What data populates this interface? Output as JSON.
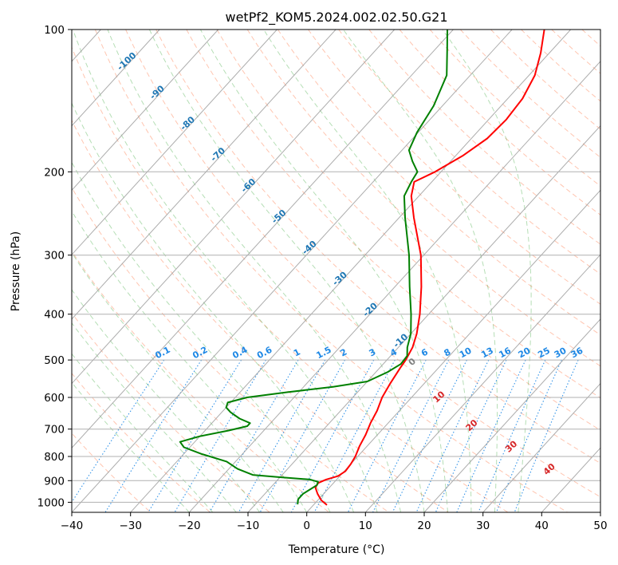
{
  "chart_data": {
    "type": "skew-t",
    "title": "wetPf2_KOM5.2024.002.02.50.G21",
    "xlabel": "Temperature (°C)",
    "ylabel": "Pressure (hPa)",
    "xlim": [
      -40,
      50
    ],
    "ylim": [
      1050,
      100
    ],
    "y_scale": "log",
    "x_ticks": [
      "−40",
      "−30",
      "−20",
      "−10",
      "0",
      "10",
      "20",
      "30",
      "40",
      "50"
    ],
    "x_tick_values": [
      -40,
      -30,
      -20,
      -10,
      0,
      10,
      20,
      30,
      40,
      50
    ],
    "y_ticks": [
      "100",
      "200",
      "300",
      "400",
      "500",
      "600",
      "700",
      "800",
      "900",
      "1000"
    ],
    "y_tick_values": [
      100,
      200,
      300,
      400,
      500,
      600,
      700,
      800,
      900,
      1000
    ],
    "grid": true,
    "series": [
      {
        "type": "temperature",
        "color": "#ff0000",
        "points": [
          [
            1013,
            2.3
          ],
          [
            990,
            0.6
          ],
          [
            960,
            -1.0
          ],
          [
            930,
            -2.4
          ],
          [
            910,
            -2.6
          ],
          [
            895,
            -1.8
          ],
          [
            880,
            -0.3
          ],
          [
            860,
            0.2
          ],
          [
            830,
            0.0
          ],
          [
            800,
            -0.4
          ],
          [
            760,
            -1.3
          ],
          [
            720,
            -2.0
          ],
          [
            680,
            -3.0
          ],
          [
            640,
            -3.8
          ],
          [
            600,
            -5.0
          ],
          [
            560,
            -5.8
          ],
          [
            520,
            -6.5
          ],
          [
            500,
            -6.8
          ],
          [
            470,
            -7.6
          ],
          [
            440,
            -9.0
          ],
          [
            400,
            -11.5
          ],
          [
            350,
            -15.5
          ],
          [
            300,
            -20.5
          ],
          [
            250,
            -27.5
          ],
          [
            225,
            -31.3
          ],
          [
            210,
            -33.0
          ],
          [
            200,
            -31.0
          ],
          [
            185,
            -28.8
          ],
          [
            170,
            -27.3
          ],
          [
            155,
            -27.0
          ],
          [
            140,
            -27.5
          ],
          [
            125,
            -29.0
          ],
          [
            112,
            -31.5
          ],
          [
            100,
            -34.5
          ]
        ]
      },
      {
        "type": "dewpoint",
        "color": "#008000",
        "points": [
          [
            1010,
            -2.8
          ],
          [
            985,
            -3.5
          ],
          [
            960,
            -3.5
          ],
          [
            940,
            -3.0
          ],
          [
            920,
            -2.5
          ],
          [
            905,
            -2.8
          ],
          [
            895,
            -4.5
          ],
          [
            885,
            -10.0
          ],
          [
            875,
            -15.0
          ],
          [
            850,
            -18.5
          ],
          [
            820,
            -21.5
          ],
          [
            790,
            -27.0
          ],
          [
            765,
            -31.0
          ],
          [
            745,
            -32.5
          ],
          [
            725,
            -30.0
          ],
          [
            705,
            -26.0
          ],
          [
            690,
            -23.5
          ],
          [
            680,
            -23.5
          ],
          [
            665,
            -26.0
          ],
          [
            645,
            -28.5
          ],
          [
            630,
            -30.0
          ],
          [
            615,
            -30.5
          ],
          [
            600,
            -28.0
          ],
          [
            585,
            -22.0
          ],
          [
            570,
            -15.0
          ],
          [
            555,
            -10.0
          ],
          [
            530,
            -8.0
          ],
          [
            510,
            -7.0
          ],
          [
            490,
            -7.2
          ],
          [
            470,
            -8.5
          ],
          [
            440,
            -10.0
          ],
          [
            400,
            -13.0
          ],
          [
            350,
            -17.5
          ],
          [
            300,
            -22.5
          ],
          [
            250,
            -29.0
          ],
          [
            225,
            -32.5
          ],
          [
            210,
            -33.5
          ],
          [
            200,
            -34.0
          ],
          [
            190,
            -36.5
          ],
          [
            180,
            -38.8
          ],
          [
            165,
            -40.2
          ],
          [
            145,
            -41.5
          ],
          [
            125,
            -44.0
          ],
          [
            110,
            -48.0
          ],
          [
            100,
            -51.0
          ]
        ]
      }
    ],
    "isotherm_labels": [
      "-100",
      "-90",
      "-80",
      "-70",
      "-60",
      "-50",
      "-40",
      "-30",
      "-20",
      "-10"
    ],
    "isotherm_label_values": [
      -100,
      -90,
      -80,
      -70,
      -60,
      -50,
      -40,
      -30,
      -20,
      -10
    ],
    "mixing_ratio_labels": [
      "0.1",
      "0.2",
      "0.4",
      "0.6",
      "1",
      "1.5",
      "2",
      "3",
      "4",
      "6",
      "8",
      "10",
      "13",
      "16",
      "20",
      "25",
      "30",
      "36"
    ],
    "mixing_ratio_values": [
      0.1,
      0.2,
      0.4,
      0.6,
      1,
      1.5,
      2,
      3,
      4,
      6,
      8,
      10,
      13,
      16,
      20,
      25,
      30,
      36
    ],
    "wetbulb_labels": [
      "0",
      "10",
      "20",
      "30",
      "40"
    ],
    "wetbulb_values": [
      0,
      10,
      20,
      30,
      40
    ],
    "colors": {
      "temperature": "#ff0000",
      "dewpoint": "#008000",
      "isotherm_label": "#1f77b4",
      "mixing_ratio": "#1e88e5",
      "dry_adiabat": "#ff7f50",
      "moist_adiabat": "#2ca02c",
      "wetbulb_label_zero": "#808080",
      "wetbulb_label": "#d62728"
    }
  }
}
